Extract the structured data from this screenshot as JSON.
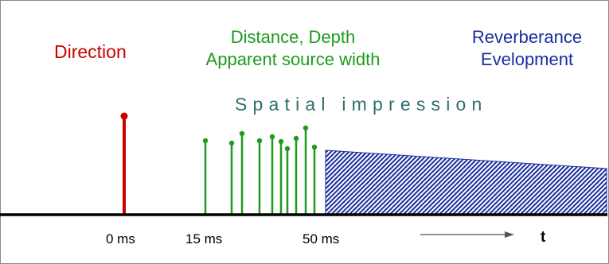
{
  "colors": {
    "direction": "#cc0000",
    "reflections": "#1f9a1f",
    "reverberance": "#1a2e9e",
    "spatial": "#2e6e6e",
    "axis": "#000000"
  },
  "labels": {
    "direction": "Direction",
    "distance_line1": "Distance, Depth",
    "distance_line2": "Apparent source width",
    "reverb_line1": "Reverberance",
    "reverb_line2": "Evelopment",
    "spatial": "Spatial impression"
  },
  "time_axis": {
    "tick_0": "0 ms",
    "tick_15": "15 ms",
    "tick_50": "50 ms",
    "t_label": "t"
  }
}
